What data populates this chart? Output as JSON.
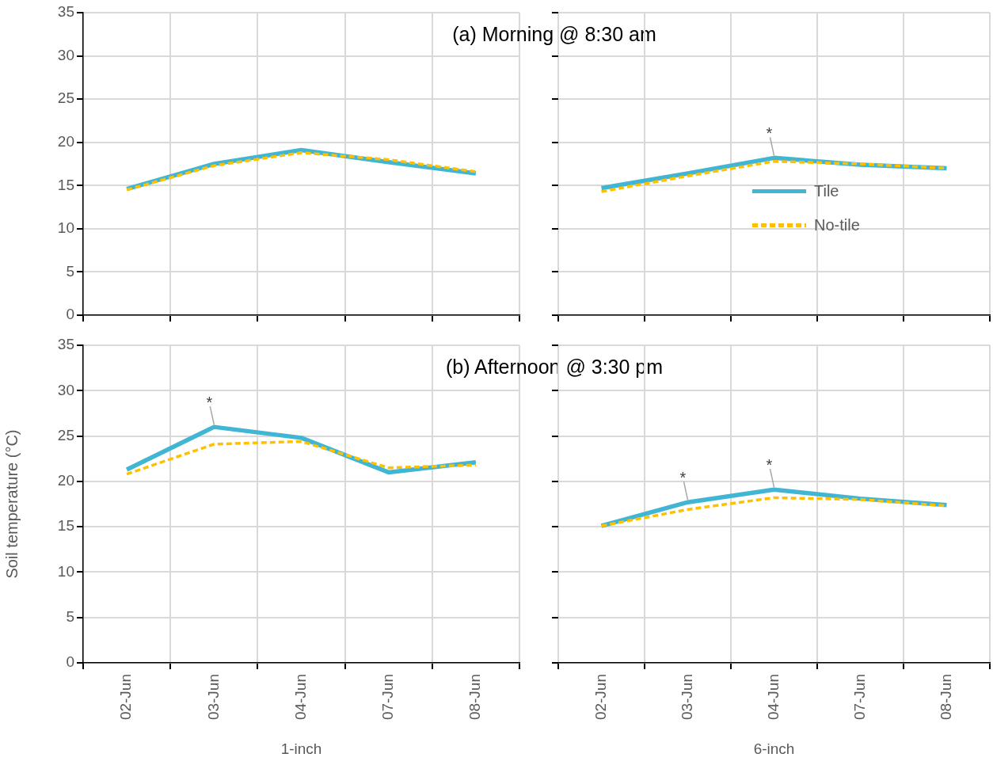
{
  "chart_data": [
    {
      "type": "line",
      "title": "(a) Morning @ 8:30 am",
      "categories": [
        "02-Jun",
        "03-Jun",
        "04-Jun",
        "07-Jun",
        "08-Jun"
      ],
      "series": [
        {
          "color": "#41b6d4",
          "line_style": "solid",
          "values": [
            14.6,
            17.5,
            19.1,
            17.7,
            16.4
          ]
        },
        {
          "color": "#ffc000",
          "line_style": "dashed",
          "values": [
            14.5,
            17.3,
            18.8,
            18.0,
            16.6
          ]
        }
      ],
      "ylim": [
        0,
        35
      ],
      "yticks": [
        0,
        5,
        10,
        15,
        20,
        25,
        30,
        35
      ],
      "grid": true,
      "marker": "none",
      "tick_labels": "y"
    },
    {
      "type": "line",
      "categories": [
        "02-Jun",
        "03-Jun",
        "04-Jun",
        "07-Jun",
        "08-Jun"
      ],
      "series": [
        {
          "name": "Tile",
          "color": "#41b6d4",
          "line_style": "solid",
          "values": [
            14.7,
            16.4,
            18.2,
            17.4,
            17.0
          ]
        },
        {
          "name": "No-tile",
          "color": "#ffc000",
          "line_style": "dashed",
          "values": [
            14.3,
            16.1,
            17.8,
            17.5,
            17.0
          ]
        }
      ],
      "ylim": [
        0,
        35
      ],
      "yticks": [
        0,
        5,
        10,
        15,
        20,
        25,
        30,
        35
      ],
      "grid": true,
      "marker": "none",
      "tick_labels": false,
      "legend": "right",
      "annotations": [
        {
          "text": "*",
          "x": "04-Jun",
          "y": 18.2
        }
      ]
    },
    {
      "type": "line",
      "title": "(b) Afternoon @ 3:30 pm",
      "xlabel": "1-inch",
      "ylabel": "Soil temperature (°C)",
      "categories": [
        "02-Jun",
        "03-Jun",
        "04-Jun",
        "07-Jun",
        "08-Jun"
      ],
      "series": [
        {
          "color": "#41b6d4",
          "line_style": "solid",
          "values": [
            21.3,
            26.0,
            24.8,
            21.0,
            22.1
          ]
        },
        {
          "color": "#ffc000",
          "line_style": "dashed",
          "values": [
            20.8,
            24.1,
            24.4,
            21.5,
            21.8
          ]
        }
      ],
      "ylim": [
        0,
        35
      ],
      "yticks": [
        0,
        5,
        10,
        15,
        20,
        25,
        30,
        35
      ],
      "grid": true,
      "marker": "none",
      "annotations": [
        {
          "text": "*",
          "x": "03-Jun",
          "y": 26.0
        }
      ]
    },
    {
      "type": "line",
      "xlabel": "6-inch",
      "categories": [
        "02-Jun",
        "03-Jun",
        "04-Jun",
        "07-Jun",
        "08-Jun"
      ],
      "series": [
        {
          "color": "#41b6d4",
          "line_style": "solid",
          "values": [
            15.1,
            17.7,
            19.1,
            18.1,
            17.4
          ]
        },
        {
          "color": "#ffc000",
          "line_style": "dashed",
          "values": [
            15.1,
            16.9,
            18.2,
            18.0,
            17.3
          ]
        }
      ],
      "ylim": [
        0,
        35
      ],
      "yticks": [
        0,
        5,
        10,
        15,
        20,
        25,
        30,
        35
      ],
      "grid": true,
      "marker": "none",
      "tick_labels": "x",
      "annotations": [
        {
          "text": "*",
          "x": "03-Jun",
          "y": 17.7
        },
        {
          "text": "*",
          "x": "04-Jun",
          "y": 19.1
        }
      ]
    }
  ]
}
